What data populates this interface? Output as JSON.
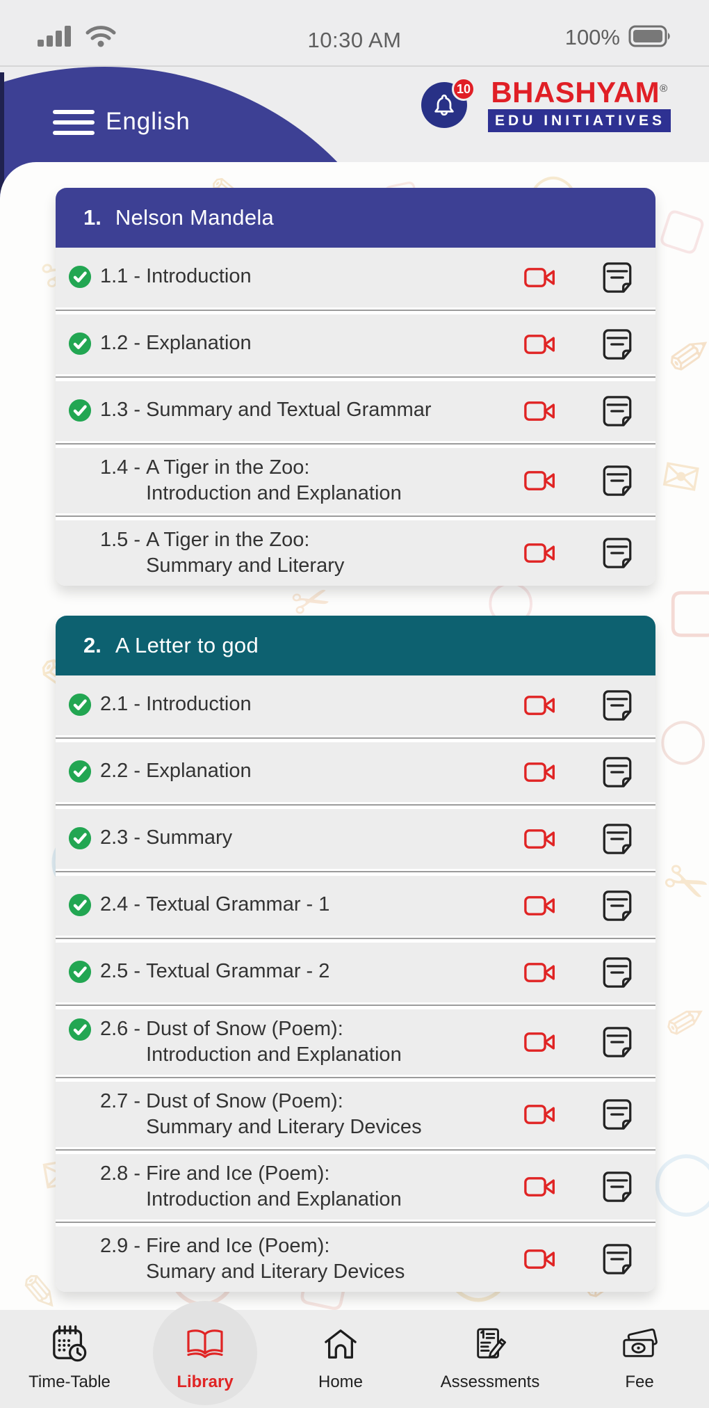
{
  "status_bar": {
    "time": "10:30 AM",
    "battery_percent": "100%"
  },
  "header": {
    "title": "English",
    "notification_count": "10",
    "brand": {
      "name": "BHASHYAM",
      "registered": "®",
      "tagline": "EDU INITIATIVES"
    }
  },
  "colors": {
    "header_blue": "#3d4094",
    "section1_accent": "#3d4094",
    "section2_accent": "#0d6170",
    "brand_red": "#e01f26",
    "brand_blue": "#2e3192",
    "check_green": "#22a652",
    "video_red": "#e02424",
    "active_nav_red": "#e02424",
    "row_gray": "#ededed"
  },
  "sections": [
    {
      "number": "1.",
      "title": "Nelson Mandela",
      "accent": "#3d4094",
      "rows": [
        {
          "num": "1.1",
          "lines": [
            "Introduction"
          ],
          "checked": true
        },
        {
          "num": "1.2",
          "lines": [
            "Explanation"
          ],
          "checked": true
        },
        {
          "num": "1.3",
          "lines": [
            "Summary and Textual Grammar"
          ],
          "checked": true
        },
        {
          "num": "1.4",
          "lines": [
            "A Tiger in the Zoo:",
            "Introduction and Explanation"
          ],
          "checked": false
        },
        {
          "num": "1.5",
          "lines": [
            "A Tiger in the Zoo:",
            "Summary and Literary"
          ],
          "checked": false
        }
      ]
    },
    {
      "number": "2.",
      "title": "A Letter to god",
      "accent": "#0d6170",
      "rows": [
        {
          "num": "2.1",
          "lines": [
            "Introduction"
          ],
          "checked": true
        },
        {
          "num": "2.2",
          "lines": [
            "Explanation"
          ],
          "checked": true
        },
        {
          "num": "2.3",
          "lines": [
            "Summary"
          ],
          "checked": true
        },
        {
          "num": "2.4",
          "lines": [
            "Textual Grammar - 1"
          ],
          "checked": true
        },
        {
          "num": "2.5",
          "lines": [
            "Textual Grammar - 2"
          ],
          "checked": true
        },
        {
          "num": "2.6",
          "lines": [
            "Dust of Snow (Poem):",
            "Introduction and Explanation"
          ],
          "checked": true
        },
        {
          "num": "2.7",
          "lines": [
            "Dust of Snow (Poem):",
            "Summary and Literary Devices"
          ],
          "checked": false
        },
        {
          "num": "2.8",
          "lines": [
            "Fire and Ice (Poem):",
            "Introduction and Explanation"
          ],
          "checked": false
        },
        {
          "num": "2.9",
          "lines": [
            "Fire and Ice (Poem):",
            "Sumary and Literary Devices"
          ],
          "checked": false
        }
      ]
    }
  ],
  "row_action_icons": [
    {
      "name": "video-camera-icon"
    },
    {
      "name": "notes-icon"
    }
  ],
  "bottom_nav": {
    "items": [
      {
        "label": "Time-Table",
        "icon": "timetable-icon",
        "active": false
      },
      {
        "label": "Library",
        "icon": "library-icon",
        "active": true
      },
      {
        "label": "Home",
        "icon": "home-icon",
        "active": false
      },
      {
        "label": "Assessments",
        "icon": "assessments-icon",
        "active": false
      },
      {
        "label": "Fee",
        "icon": "fee-icon",
        "active": false
      }
    ]
  }
}
